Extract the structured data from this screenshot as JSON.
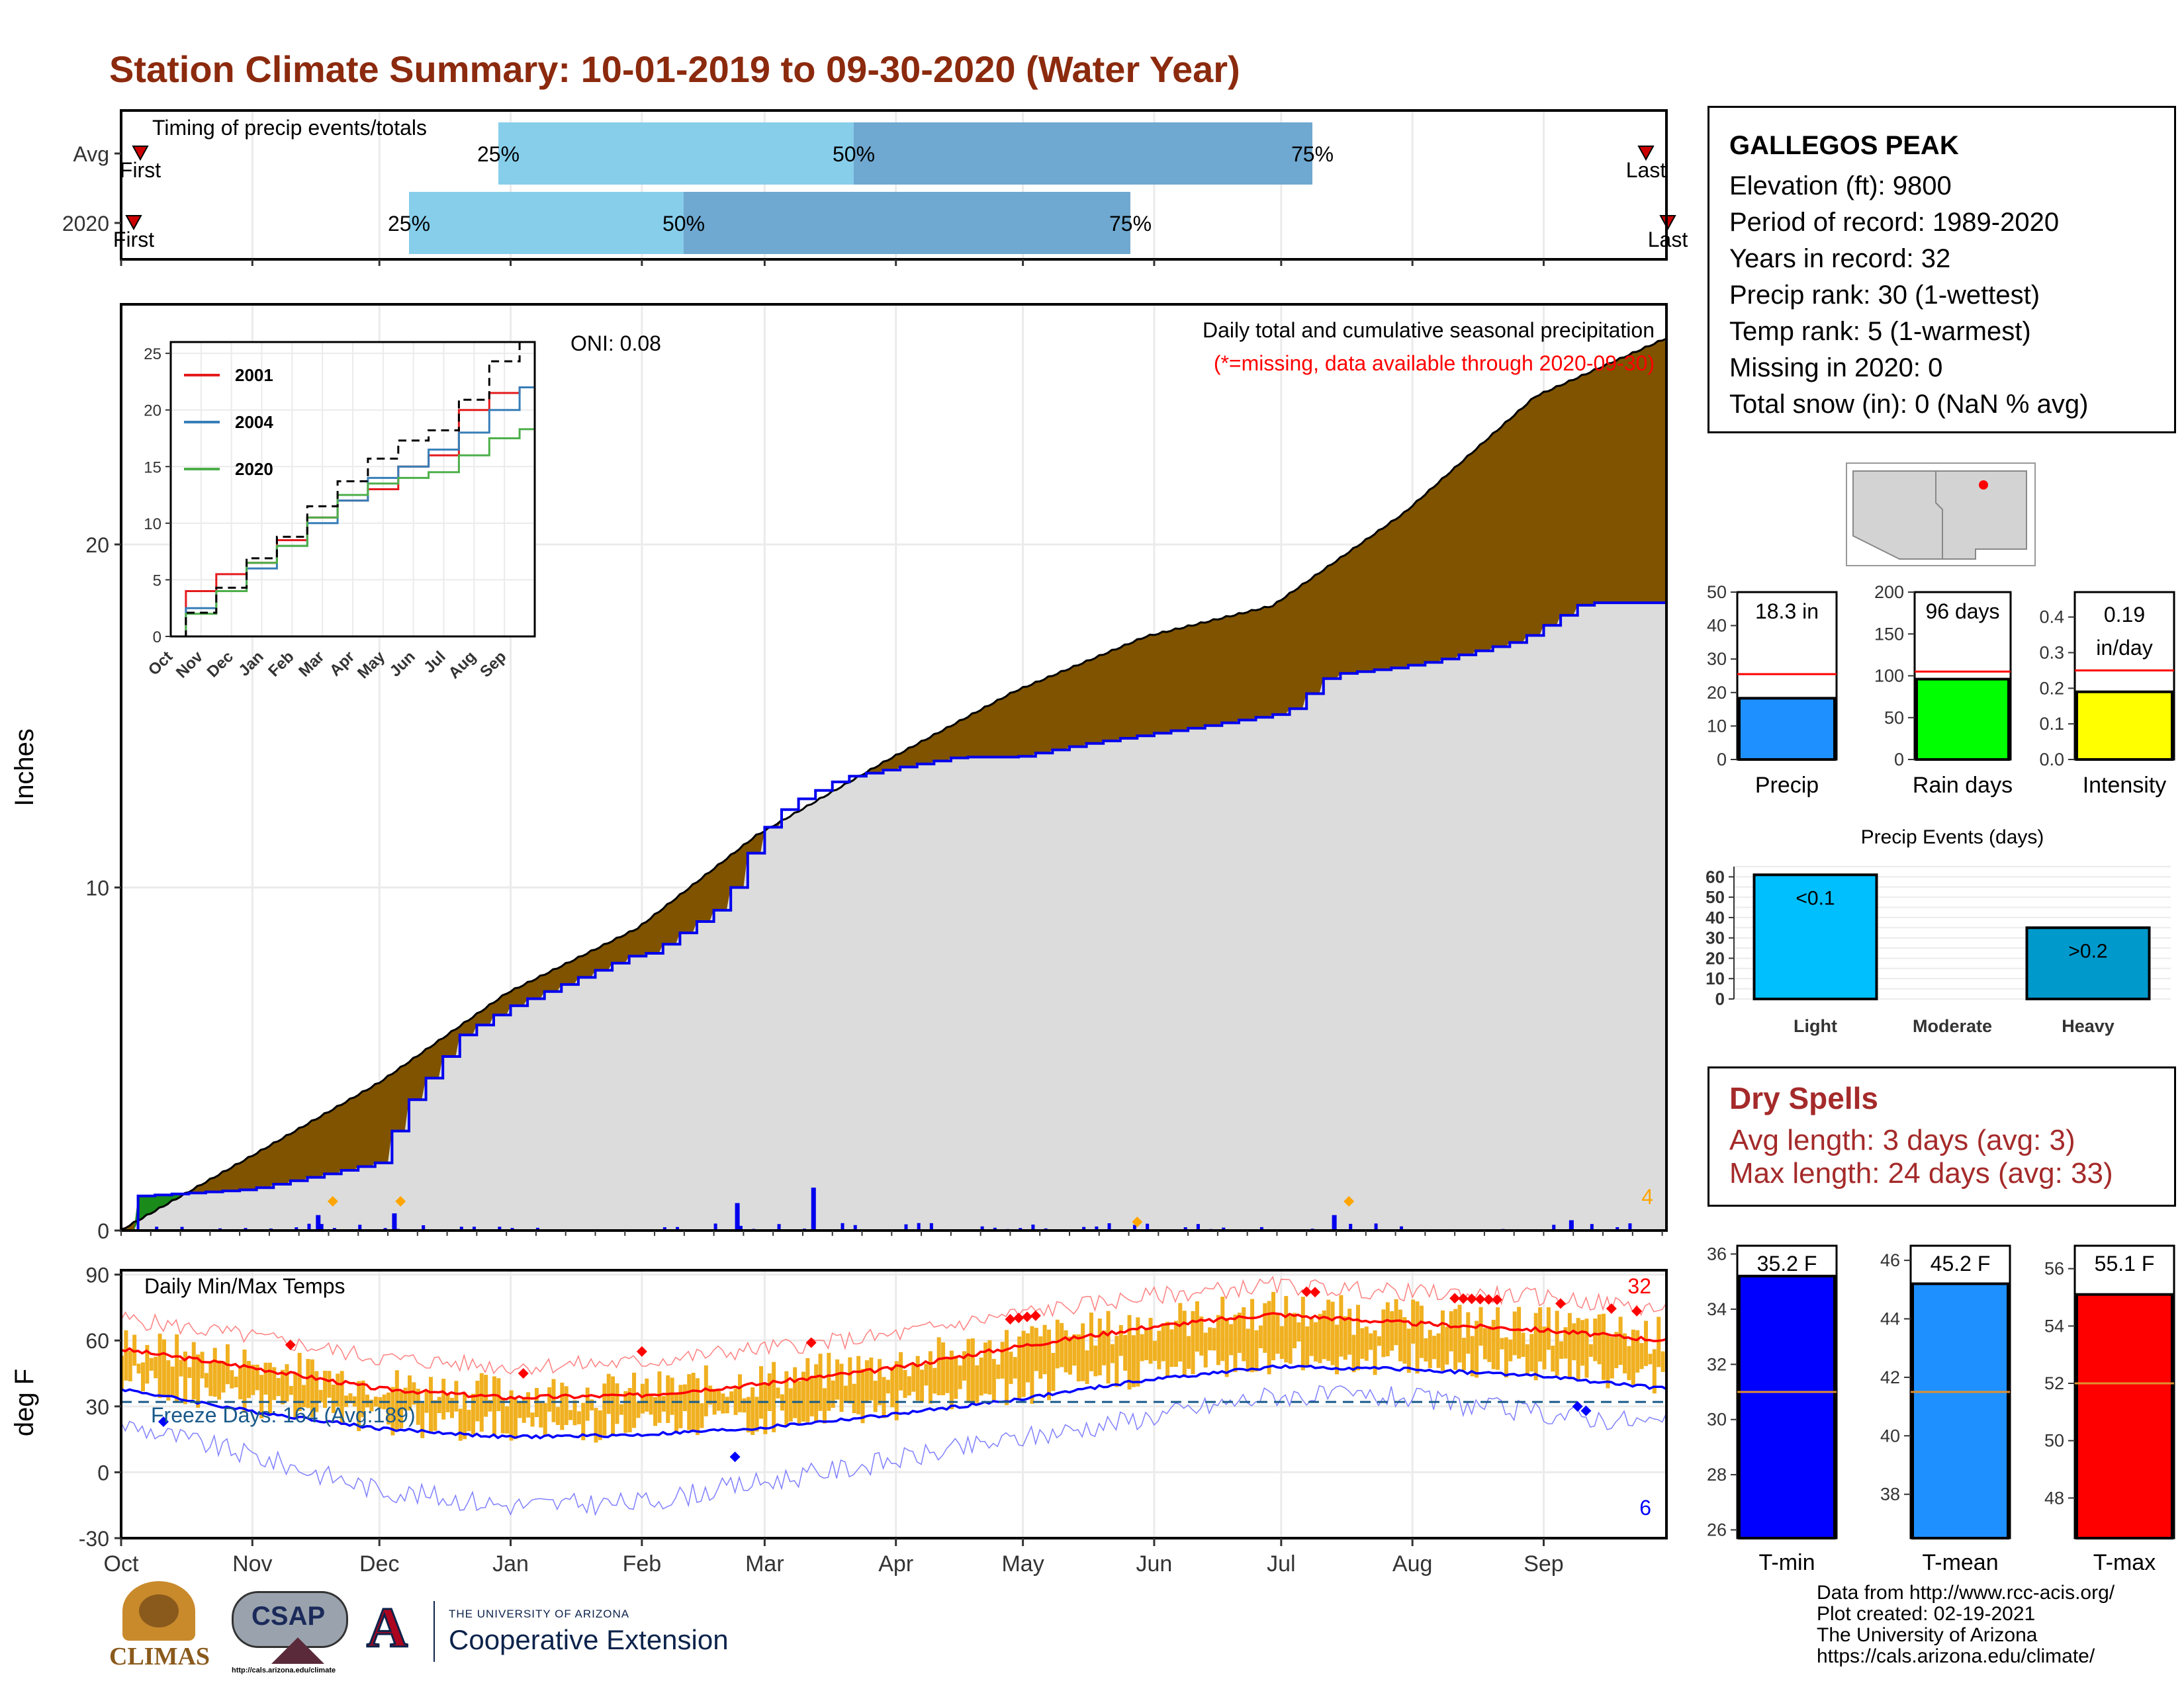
{
  "title": "Station Climate Summary: 10-01-2019 to 09-30-2020 (Water Year)",
  "timing": {
    "label": "Timing of precip events/totals",
    "rows": [
      {
        "name": "Avg",
        "first": "First",
        "last": "Last",
        "p25": "25%",
        "p50": "50%",
        "p75": "75%"
      },
      {
        "name": "2020",
        "first": "First",
        "last": "Last",
        "p25": "25%",
        "p50": "50%",
        "p75": "75%"
      }
    ],
    "colors": {
      "light": "#87ceeb",
      "dark": "#6fa8d0",
      "marker": "#cc0000"
    }
  },
  "station": {
    "name": "GALLEGOS PEAK",
    "lines": [
      "Elevation (ft): 9800",
      "Period of record: 1989-2020",
      "Years in record: 32",
      "Precip rank: 30 (1-wettest)",
      "Temp rank: 5 (1-warmest)",
      "Missing in 2020: 0",
      "Total snow (in): 0 (NaN % avg)"
    ]
  },
  "dry_spells": {
    "title": "Dry Spells",
    "avg": "Avg length: 3 days (avg: 3)",
    "max": "Max length: 24 days (avg: 33)"
  },
  "credits": [
    "Data from http://www.rcc-acis.org/",
    "Plot created: 02-19-2021",
    "The University of Arizona",
    "https://cals.arizona.edu/climate/"
  ],
  "logos": {
    "climas": "CLIMAS",
    "csap": "CSAP",
    "csap_url": "http://cals.arizona.edu/climate",
    "ua_small": "THE UNIVERSITY OF ARIZONA",
    "ua_ext": "Cooperative Extension"
  },
  "chart_data": [
    {
      "type": "area",
      "title": "Daily total and cumulative seasonal precipitation",
      "subtitle": "(*=missing, data available through 2020-09-30)",
      "ylabel": "Inches",
      "ylim": [
        0,
        27
      ],
      "yticks": [
        0,
        10,
        20
      ],
      "oni": "ONI: 0.08",
      "corner_count": "4",
      "months": [
        "Oct",
        "Nov",
        "Dec",
        "Jan",
        "Feb",
        "Mar",
        "Apr",
        "May",
        "Jun",
        "Jul",
        "Aug",
        "Sep"
      ],
      "series": [
        {
          "name": "avg_cumulative",
          "x": [
            0,
            30,
            61,
            91,
            122,
            150,
            181,
            211,
            242,
            272,
            303,
            334,
            365
          ],
          "values": [
            0,
            2.1,
            4.3,
            6.9,
            8.8,
            11.5,
            13.7,
            15.7,
            17.3,
            18.2,
            20.9,
            24.3,
            26.0
          ]
        },
        {
          "name": "2020_cumulative",
          "x": [
            0,
            3,
            30,
            50,
            61,
            66,
            80,
            91,
            120,
            125,
            142,
            150,
            157,
            170,
            197,
            211,
            228,
            255,
            275,
            285,
            300,
            310,
            330,
            345,
            365
          ],
          "values": [
            0,
            1.0,
            1.2,
            1.7,
            2.0,
            3.5,
            5.7,
            6.5,
            8.0,
            8.1,
            9.5,
            11.5,
            12.4,
            13.2,
            13.8,
            13.8,
            14.2,
            14.7,
            15.1,
            16.2,
            16.4,
            16.6,
            17.2,
            18.3,
            18.3
          ]
        }
      ],
      "daily_precip_peaks": [
        {
          "x": 46,
          "v": 0.45
        },
        {
          "x": 64,
          "v": 0.5
        },
        {
          "x": 145,
          "v": 0.8
        },
        {
          "x": 163,
          "v": 1.25
        },
        {
          "x": 286,
          "v": 0.45
        },
        {
          "x": 342,
          "v": 0.3
        }
      ]
    },
    {
      "type": "line",
      "title": "",
      "inset": true,
      "ylim": [
        0,
        25
      ],
      "yticks": [
        0,
        5,
        10,
        15,
        20,
        25
      ],
      "months": [
        "Oct",
        "Nov",
        "Dec",
        "Jan",
        "Feb",
        "Mar",
        "Apr",
        "May",
        "Jun",
        "Jul",
        "Aug",
        "Sep"
      ],
      "series": [
        {
          "name": "2001",
          "color": "#e41a1c",
          "x": [
            0,
            1,
            2,
            3,
            4,
            5,
            6,
            7,
            8,
            9,
            10,
            11,
            12
          ],
          "values": [
            0,
            4,
            5.5,
            6.5,
            8.5,
            10.5,
            12,
            13,
            15,
            16,
            20,
            21.5,
            22
          ]
        },
        {
          "name": "2004",
          "color": "#377eb8",
          "x": [
            0,
            1,
            2,
            3,
            4,
            5,
            6,
            7,
            8,
            9,
            10,
            11,
            12
          ],
          "values": [
            0,
            2.5,
            4,
            6,
            8,
            10,
            12,
            14,
            15,
            16.5,
            18,
            20,
            22
          ]
        },
        {
          "name": "2020",
          "color": "#4daf4a",
          "x": [
            0,
            1,
            2,
            3,
            4,
            5,
            6,
            7,
            8,
            9,
            10,
            11,
            12
          ],
          "values": [
            0,
            2,
            4,
            6.5,
            8,
            10.5,
            12.5,
            13.5,
            14,
            14.5,
            16,
            17.5,
            18.3
          ]
        },
        {
          "name": "avg",
          "color": "#000000",
          "x": [
            0,
            1,
            2,
            3,
            4,
            5,
            6,
            7,
            8,
            9,
            10,
            11,
            12
          ],
          "values": [
            0,
            2.1,
            4.3,
            6.9,
            8.8,
            11.5,
            13.7,
            15.7,
            17.3,
            18.2,
            20.9,
            24.3,
            26
          ]
        }
      ]
    },
    {
      "type": "bar",
      "title": "Precip",
      "value_label": "18.3 in",
      "value": 18.3,
      "avg": 25.5,
      "ylim": [
        0,
        50
      ],
      "yticks": [
        0,
        10,
        20,
        30,
        40,
        50
      ],
      "color": "#1e90ff"
    },
    {
      "type": "bar",
      "title": "Rain days",
      "value_label": "96 days",
      "value": 96,
      "avg": 105,
      "ylim": [
        0,
        200
      ],
      "yticks": [
        0,
        50,
        100,
        150,
        200
      ],
      "color": "#00ff00"
    },
    {
      "type": "bar",
      "title": "Intensity",
      "value_label": "0.19 in/day",
      "value_label_lines": [
        "0.19",
        "in/day"
      ],
      "value": 0.19,
      "avg": 0.25,
      "ylim": [
        0,
        0.47
      ],
      "yticks": [
        "0.0",
        "0.1",
        "0.2",
        "0.3",
        "0.4"
      ],
      "ytick_values": [
        0,
        0.1,
        0.2,
        0.3,
        0.4
      ],
      "color": "#ffff00"
    },
    {
      "type": "bar",
      "title": "Precip Events (days)",
      "categories": [
        "Light",
        "Moderate",
        "Heavy"
      ],
      "values": [
        61,
        0,
        35
      ],
      "labels": [
        "<0.1",
        "",
        ">0.2"
      ],
      "colors": [
        "#00bfff",
        "#00bfff",
        "#0099cc"
      ],
      "ylim": [
        0,
        65
      ],
      "yticks": [
        0,
        10,
        20,
        30,
        40,
        50,
        60
      ]
    },
    {
      "type": "line",
      "title": "Daily Min/Max Temps",
      "ylabel": "deg F",
      "ylim": [
        -30,
        92
      ],
      "yticks": [
        -30,
        0,
        30,
        60,
        90
      ],
      "freeze_label": "Freeze Days: 164 (Avg:189)",
      "freeze_line": 32,
      "count_hot": "32",
      "count_cold": "6",
      "months": [
        "Oct",
        "Nov",
        "Dec",
        "Jan",
        "Feb",
        "Mar",
        "Apr",
        "May",
        "Jun",
        "Jul",
        "Aug",
        "Sep"
      ],
      "series": [
        {
          "name": "avg max",
          "color": "#ff0000",
          "x": [
            0,
            30,
            61,
            91,
            122,
            150,
            181,
            211,
            242,
            272,
            303,
            334,
            365
          ],
          "values": [
            56,
            48,
            38,
            34,
            35,
            40,
            47,
            57,
            66,
            72,
            68,
            65,
            60
          ]
        },
        {
          "name": "avg min",
          "color": "#0000ff",
          "x": [
            0,
            30,
            61,
            91,
            122,
            150,
            181,
            211,
            242,
            272,
            303,
            334,
            365
          ],
          "values": [
            38,
            28,
            20,
            16,
            17,
            20,
            26,
            33,
            42,
            48,
            47,
            44,
            38
          ]
        },
        {
          "name": "record max",
          "color": "#ff8080",
          "x": [
            0,
            30,
            61,
            91,
            122,
            150,
            181,
            211,
            242,
            272,
            303,
            334,
            365
          ],
          "values": [
            70,
            62,
            52,
            48,
            50,
            56,
            62,
            72,
            80,
            85,
            82,
            80,
            74
          ]
        },
        {
          "name": "record min",
          "color": "#8080ff",
          "x": [
            0,
            30,
            61,
            91,
            122,
            150,
            181,
            211,
            242,
            272,
            303,
            334,
            365
          ],
          "values": [
            22,
            8,
            -8,
            -15,
            -14,
            -5,
            5,
            15,
            25,
            35,
            34,
            27,
            22
          ]
        }
      ]
    },
    {
      "type": "bar",
      "title": "T-min",
      "value_label": "35.2 F",
      "value": 35.2,
      "avg": 31.0,
      "ylim": [
        25.7,
        36.3
      ],
      "yticks": [
        26,
        28,
        30,
        32,
        34,
        36
      ],
      "color": "#0000ff"
    },
    {
      "type": "bar",
      "title": "T-mean",
      "value_label": "45.2 F",
      "value": 45.2,
      "avg": 41.5,
      "ylim": [
        36.5,
        46.5
      ],
      "yticks": [
        38,
        40,
        42,
        44,
        46
      ],
      "color": "#1e90ff"
    },
    {
      "type": "bar",
      "title": "T-max",
      "value_label": "55.1 F",
      "value": 55.1,
      "avg": 52.0,
      "ylim": [
        46.6,
        56.8
      ],
      "yticks": [
        48,
        50,
        52,
        54,
        56
      ],
      "color": "#ff0000"
    }
  ]
}
